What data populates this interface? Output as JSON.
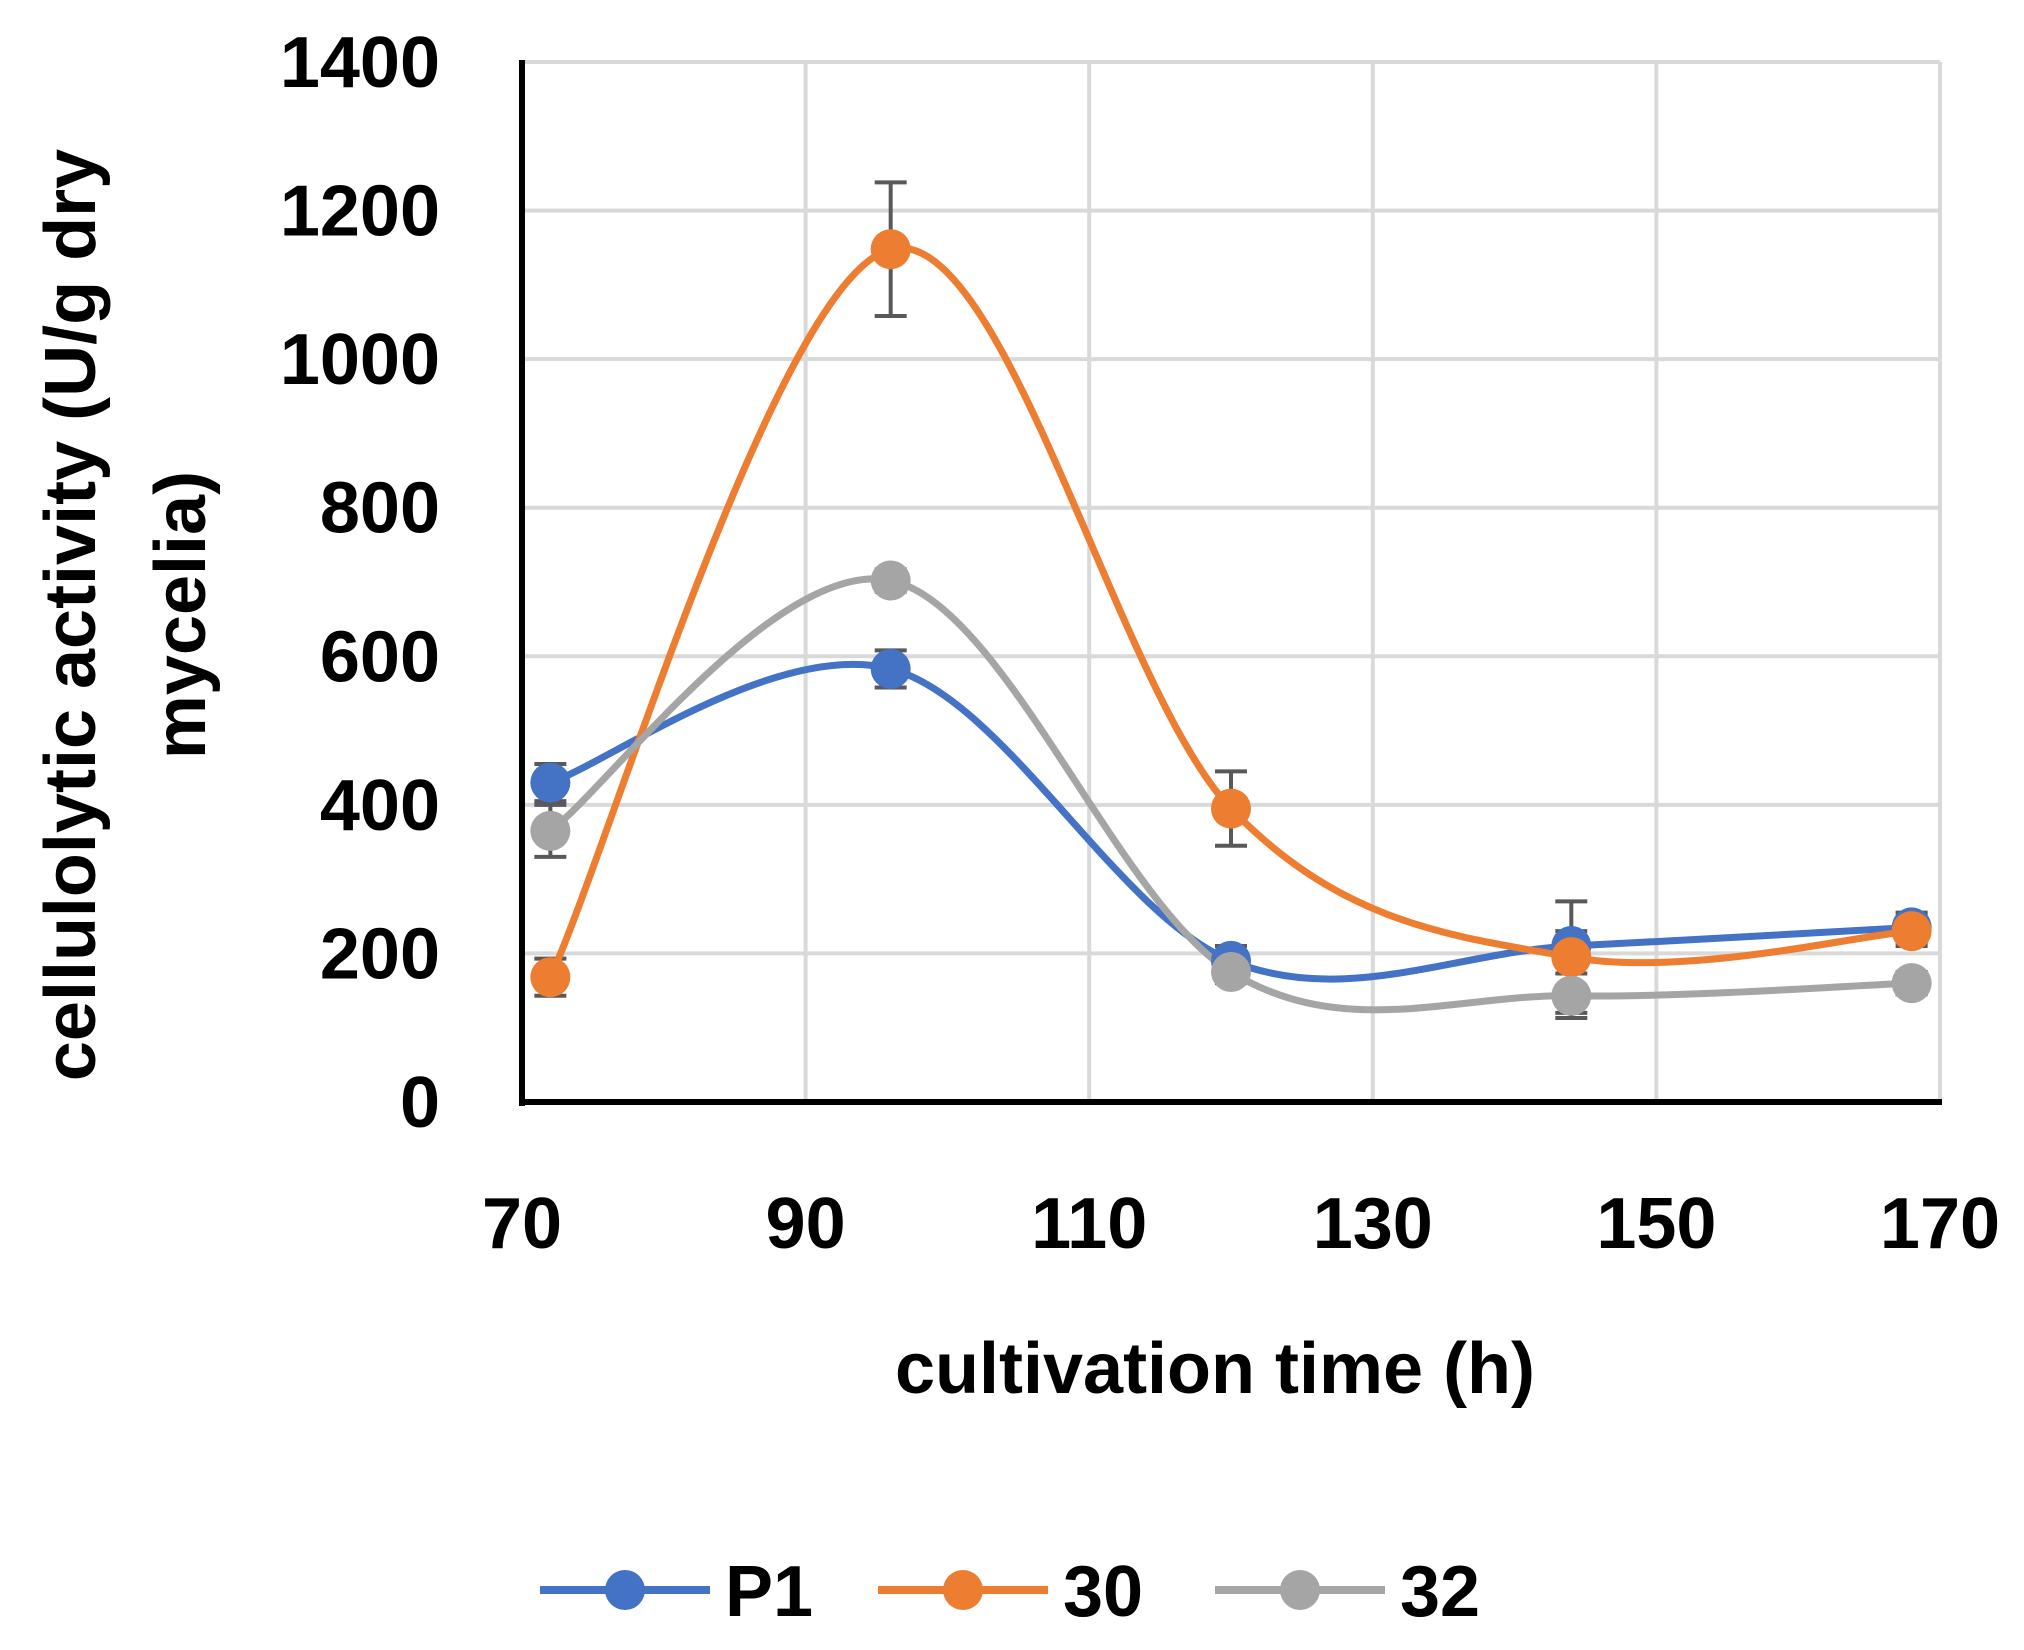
{
  "chart_data": {
    "type": "line",
    "smooth": true,
    "title": "",
    "xlabel": "cultivation time (h)",
    "ylabel_lines": [
      "cellulolytic activity (U/g dry",
      "mycelia)"
    ],
    "xlim": [
      70,
      170
    ],
    "ylim": [
      0,
      1400
    ],
    "xticks": [
      70,
      90,
      110,
      130,
      150,
      170
    ],
    "yticks": [
      0,
      200,
      400,
      600,
      800,
      1000,
      1200,
      1400
    ],
    "grid": true,
    "legend_position": "bottom",
    "x": [
      72,
      96,
      120,
      144,
      168
    ],
    "series": [
      {
        "name": "P1",
        "color": "#4472C4",
        "values": [
          430,
          583,
          190,
          210,
          235
        ],
        "errors": [
          25,
          25,
          20,
          20,
          20
        ]
      },
      {
        "name": "30",
        "color": "#ED7D31",
        "values": [
          168,
          1148,
          395,
          195,
          230
        ],
        "errors": [
          25,
          90,
          50,
          75,
          20
        ]
      },
      {
        "name": "32",
        "color": "#A5A5A5",
        "values": [
          365,
          702,
          175,
          143,
          160
        ],
        "errors": [
          35,
          15,
          15,
          30,
          15
        ]
      }
    ]
  }
}
